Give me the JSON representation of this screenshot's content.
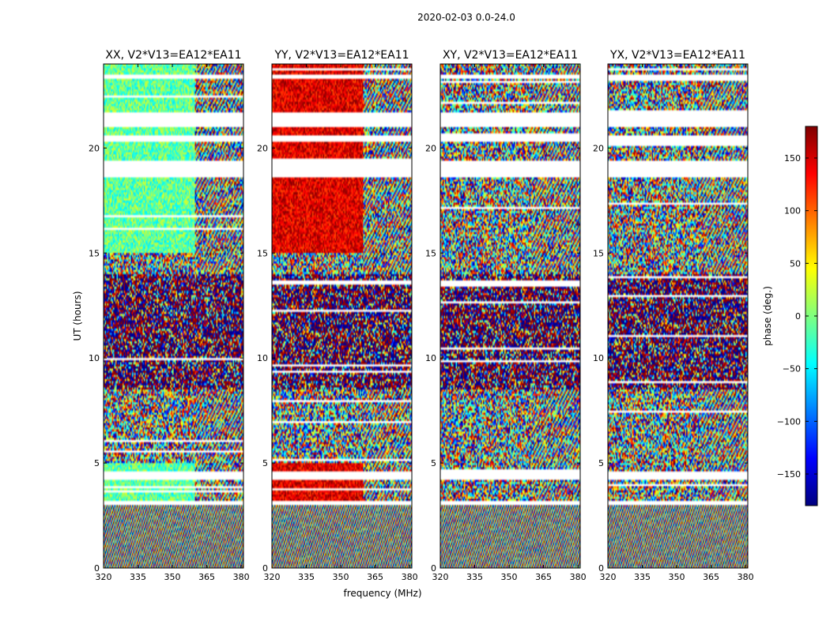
{
  "suptitle": "2020-02-03 0.0-24.0",
  "chart_data": {
    "type": "heatmap",
    "panels": [
      {
        "title": "XX, V2*V13=EA12*EA11",
        "pol": "XX"
      },
      {
        "title": "YY, V2*V13=EA12*EA11",
        "pol": "YY"
      },
      {
        "title": "XY, V2*V13=EA12*EA11",
        "pol": "XY"
      },
      {
        "title": "YX, V2*V13=EA12*EA11",
        "pol": "YX"
      }
    ],
    "xlabel": "frequency (MHz)",
    "ylabel": "UT (hours)",
    "xlim": [
      320,
      381
    ],
    "ylim": [
      0,
      24
    ],
    "xticks": [
      320,
      335,
      350,
      365,
      380
    ],
    "yticks": [
      0,
      5,
      10,
      15,
      20
    ],
    "colorbar": {
      "label": "phase (deg.)",
      "range": [
        -180,
        180
      ],
      "ticks": [
        150,
        100,
        50,
        0,
        -50,
        -100,
        -150
      ],
      "tick_labels": [
        "150",
        "100",
        "50",
        "0",
        "−50",
        "−100",
        "−150"
      ],
      "colormap": "jet"
    },
    "flagged_ut_ranges": [
      [
        3.05,
        3.2
      ],
      [
        4.2,
        4.6
      ],
      [
        18.6,
        19.4
      ],
      [
        20.35,
        20.55
      ],
      [
        21.0,
        21.7
      ],
      [
        23.3,
        23.5
      ]
    ]
  },
  "colors": {
    "jet": [
      "#00007f",
      "#0000ff",
      "#007fff",
      "#00ffff",
      "#7fff7f",
      "#ffff00",
      "#ff7f00",
      "#ff0000",
      "#7f0000"
    ]
  }
}
